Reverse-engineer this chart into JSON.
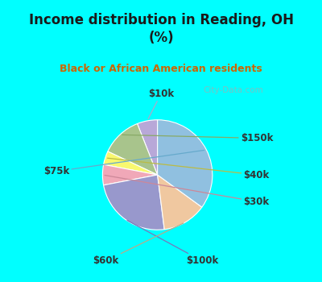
{
  "title": "Income distribution in Reading, OH\n(%)",
  "subtitle": "Black or African American residents",
  "labels": [
    "$10k",
    "$150k",
    "$40k",
    "$30k",
    "$100k",
    "$60k",
    "$75k"
  ],
  "sizes": [
    6,
    12,
    4,
    6,
    24,
    13,
    35
  ],
  "colors": [
    "#b8a8d8",
    "#a8c48c",
    "#f8f870",
    "#f0a8b8",
    "#9898cc",
    "#f0c8a0",
    "#90c0e0"
  ],
  "bg_cyan": "#00ffff",
  "bg_chart_color": "#d8ede0",
  "title_color": "#1a1a1a",
  "subtitle_color": "#cc6600",
  "startangle": 90,
  "watermark": "City-Data.com",
  "label_color": "#333333",
  "line_colors": [
    "#9999bb",
    "#88aa66",
    "#cccc44",
    "#cc8899",
    "#7777aa",
    "#cc9966",
    "#66aabb"
  ]
}
